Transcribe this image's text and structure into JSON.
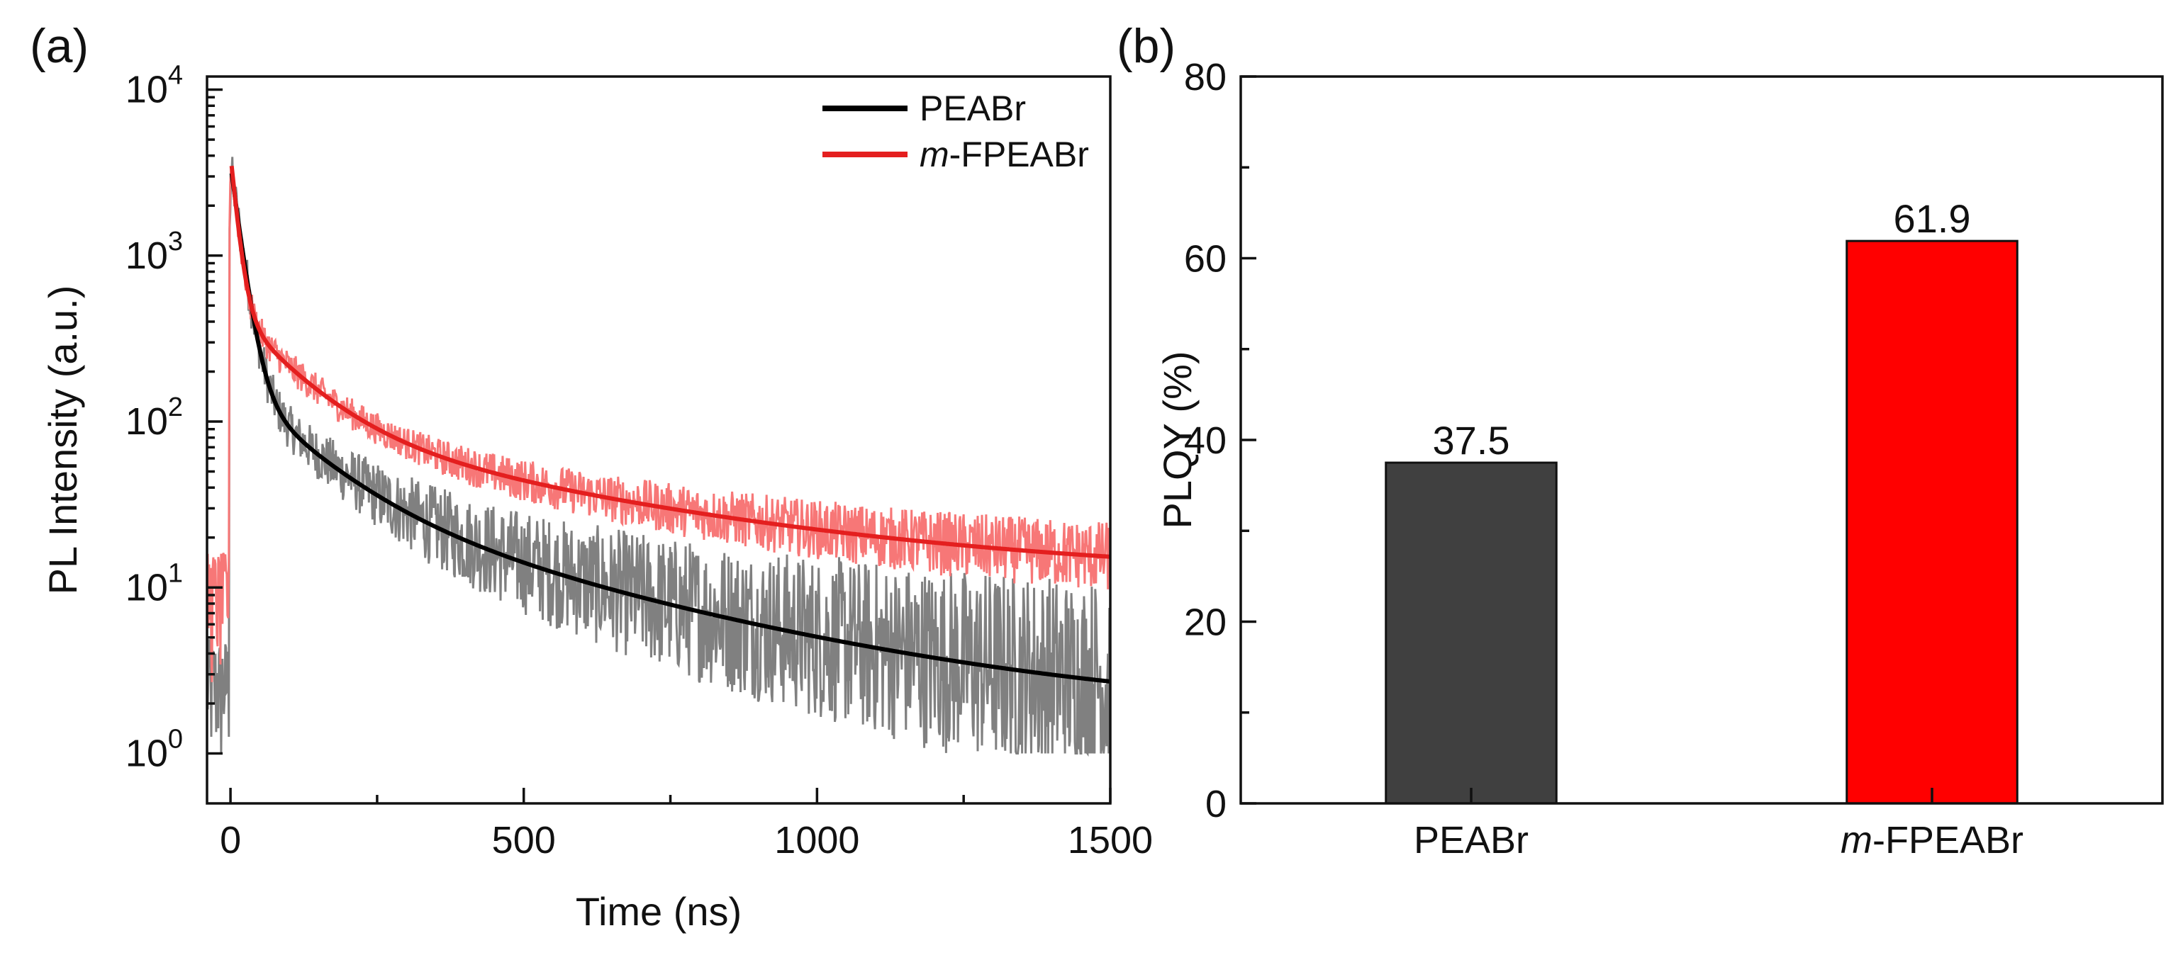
{
  "colors": {
    "axis": "#111111",
    "black_fit": "#000000",
    "black_raw": "#808080",
    "red_fit": "#e41f1f",
    "red_raw": "#f77777",
    "bar_dark": "#404040",
    "bar_red": "#ff0000"
  },
  "chart_data": [
    {
      "panel": "(a)",
      "type": "line",
      "xlabel": "Time (ns)",
      "ylabel": "PL Intensity (a.u.)",
      "xlim": [
        -40,
        1500
      ],
      "ylim_log": [
        0.5,
        12000
      ],
      "yscale": "log",
      "x_ticks": [
        0,
        500,
        1000,
        1500
      ],
      "x_tick_labels": [
        "0",
        "500",
        "1000",
        "1500"
      ],
      "y_ticks": [
        1,
        10,
        100,
        1000,
        10000
      ],
      "y_tick_labels": [
        {
          "base": "10",
          "exp": "0"
        },
        {
          "base": "10",
          "exp": "1"
        },
        {
          "base": "10",
          "exp": "2"
        },
        {
          "base": "10",
          "exp": "3"
        },
        {
          "base": "10",
          "exp": "4"
        }
      ],
      "legend_position": "top-right",
      "series": [
        {
          "name": "PEABr",
          "legend_label": "PEABr",
          "fit_color": "#000000",
          "raw_color": "#808080",
          "fit": {
            "A1": 3350,
            "t1": 16,
            "A2": 140,
            "t2": 110,
            "A3": 36,
            "t3": 420,
            "baseline": 1.7
          },
          "noise_floor": 1,
          "noise_factor": 2.2
        },
        {
          "name": "m-FPEABr",
          "legend_label": "-FPEABr",
          "legend_italic": "m",
          "fit_color": "#e41f1f",
          "raw_color": "#f77777",
          "fit": {
            "A1": 3600,
            "t1": 11,
            "A2": 380,
            "t2": 95,
            "A3": 87,
            "t3": 480,
            "baseline": 11.5
          },
          "noise_floor": 4.5,
          "noise_factor": 1.55
        }
      ]
    },
    {
      "panel": "(b)",
      "type": "bar",
      "ylabel": "PLQY (%)",
      "ylim": [
        0,
        80
      ],
      "y_ticks": [
        0,
        20,
        40,
        60,
        80
      ],
      "categories": [
        {
          "text": "PEABr",
          "italic": ""
        },
        {
          "text": "-FPEABr",
          "italic": "m"
        }
      ],
      "values": [
        37.5,
        61.9
      ],
      "value_labels": [
        "37.5",
        "61.9"
      ],
      "bar_colors": [
        "#404040",
        "#ff0000"
      ]
    }
  ]
}
